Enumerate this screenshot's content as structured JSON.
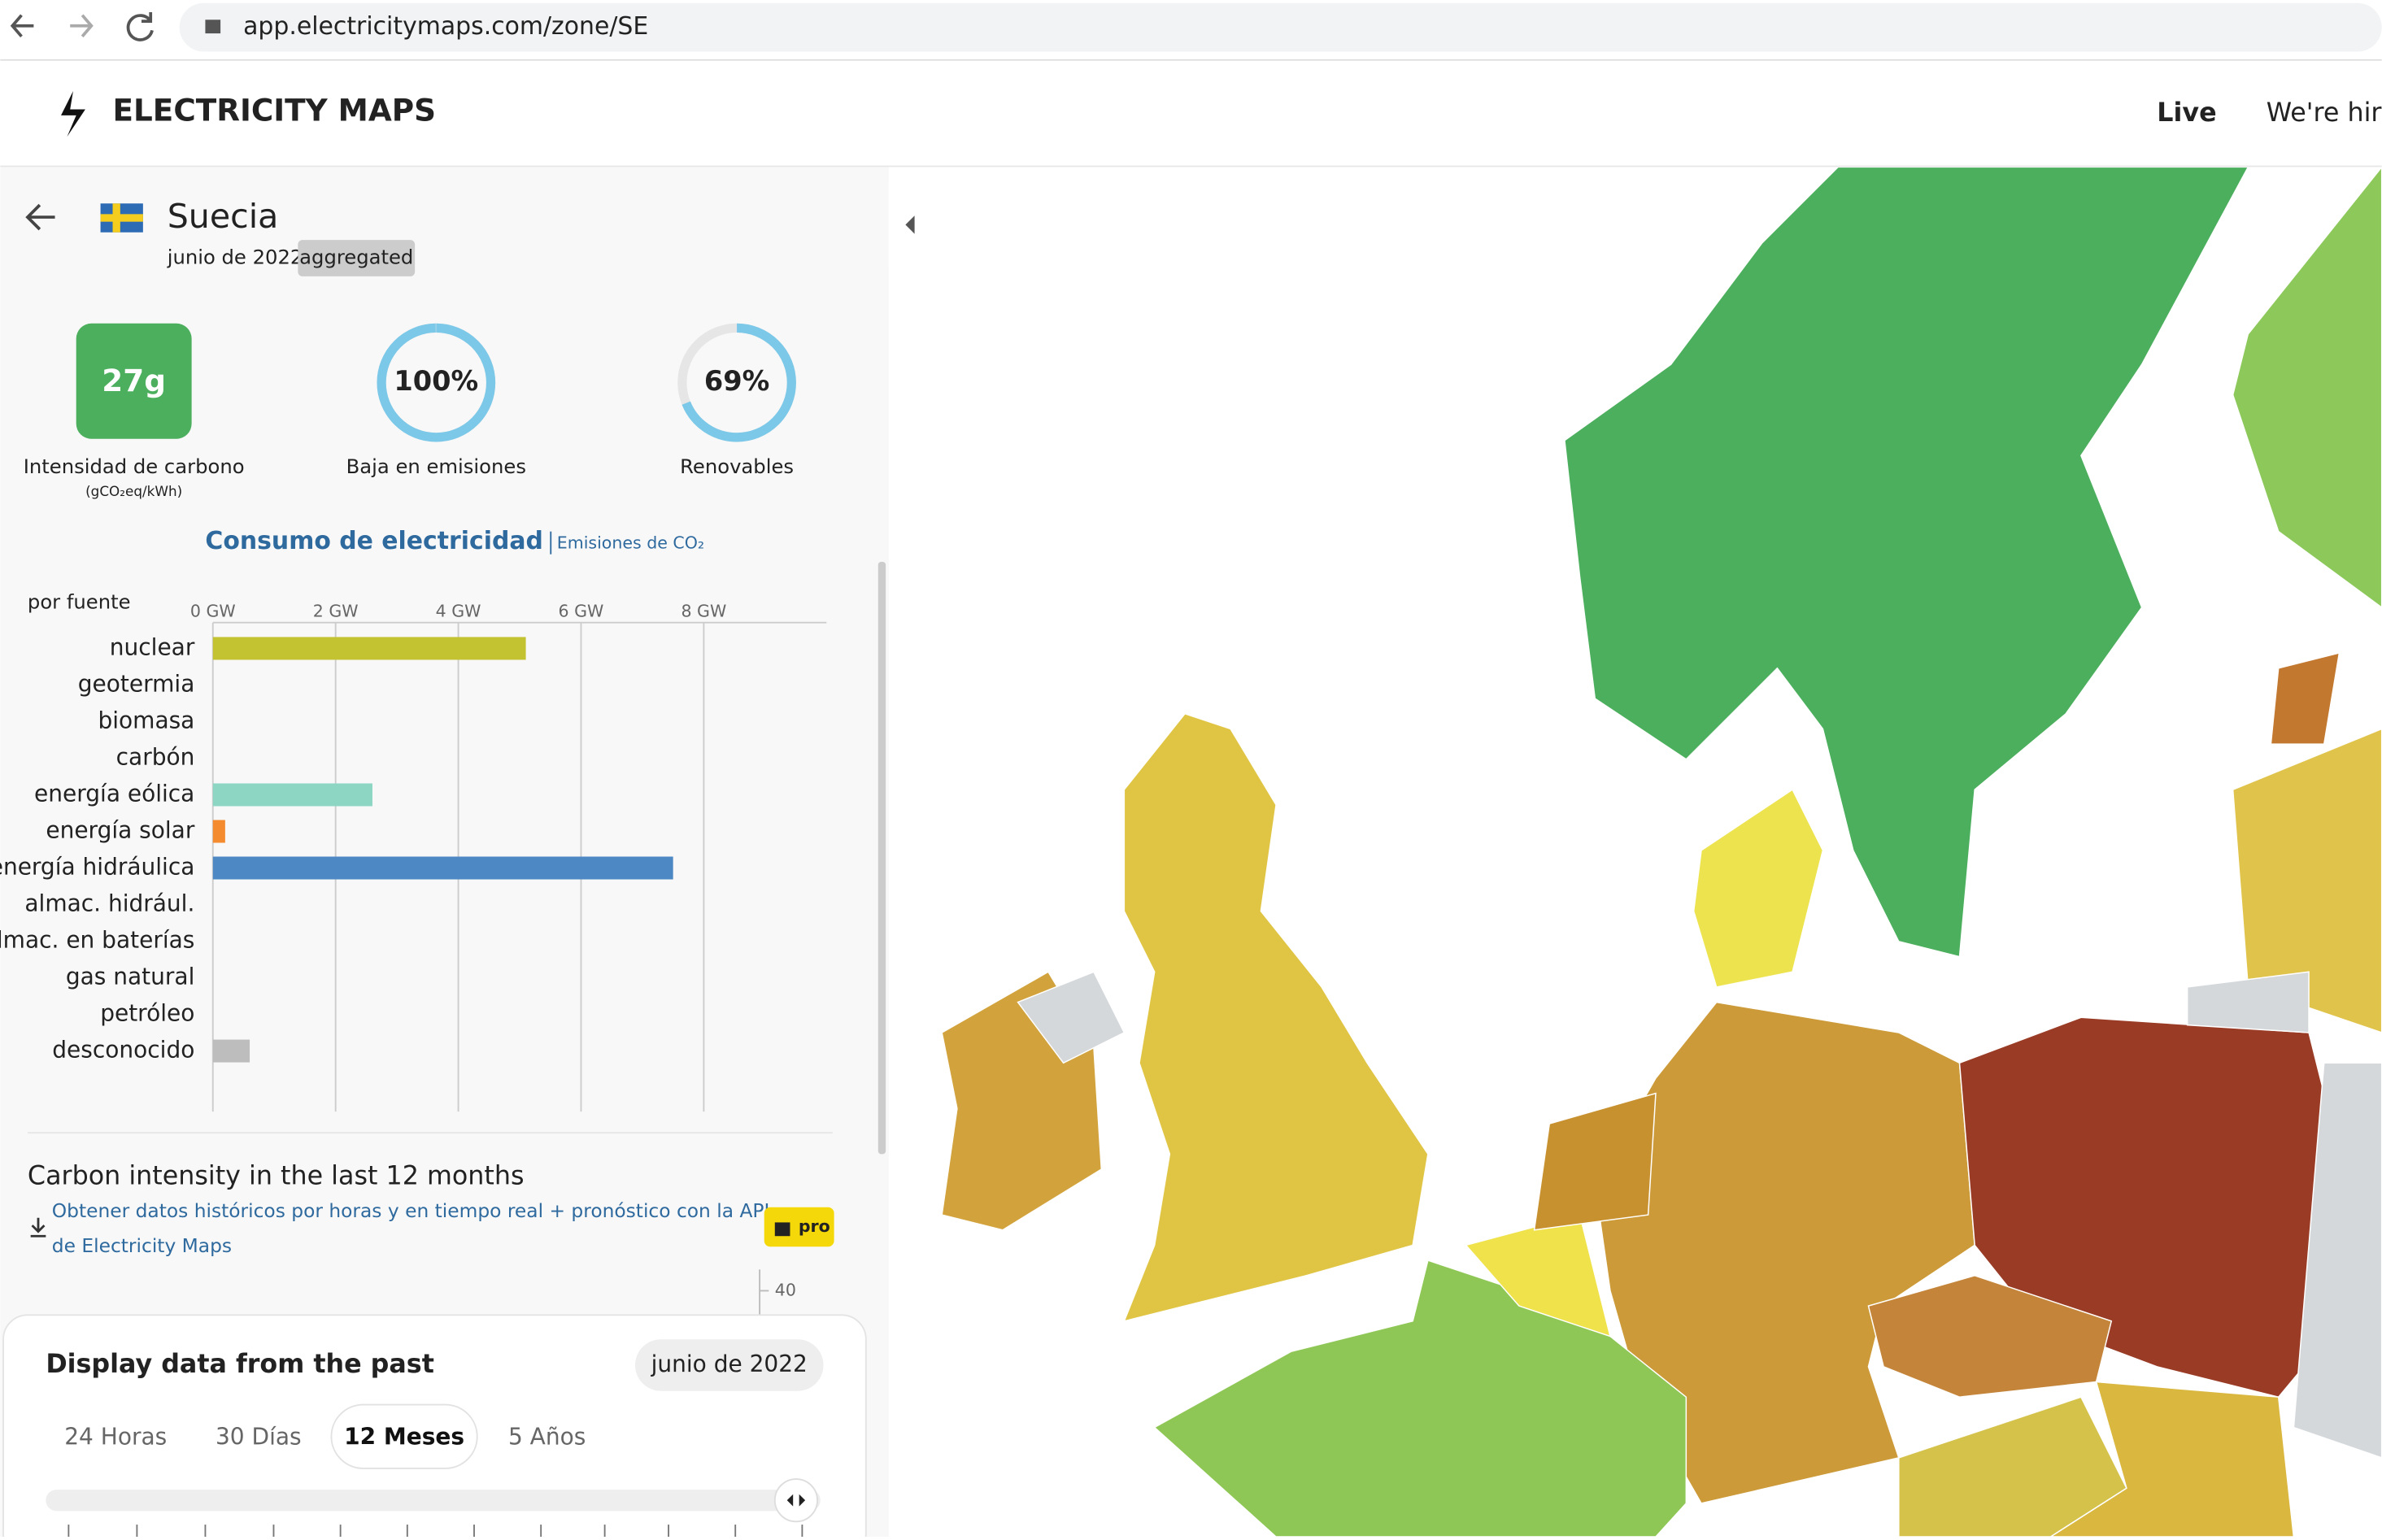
{
  "browser": {
    "url": "app.electricitymaps.com/zone/SE"
  },
  "header": {
    "brand": "ELECTRICITY MAPS",
    "nav": [
      "Live",
      "We're hiri"
    ]
  },
  "zone": {
    "name": "Suecia",
    "date": "junio de 2022",
    "badge": "aggregated"
  },
  "metrics": [
    {
      "label": "27g",
      "name": "Intensidad de carbono",
      "unit": "(gCO₂eq/kWh)"
    },
    {
      "value": 100,
      "label": "100%",
      "name": "Baja en emisiones"
    },
    {
      "value": 69,
      "label": "69%",
      "name": "Renovables"
    }
  ],
  "tabs": [
    "Consumo de electricidad",
    "Emisiones de CO₂"
  ],
  "chart_data": {
    "type": "bar",
    "orientation": "horizontal",
    "subtitle": "por fuente",
    "categories": [
      "nuclear",
      "geotermia",
      "biomasa",
      "carbón",
      "energía eólica",
      "energía solar",
      "energía hidráulica",
      "almac. hidrául.",
      "almac. en baterías",
      "gas natural",
      "petróleo",
      "desconocido"
    ],
    "values": [
      5.1,
      0,
      0,
      0,
      2.6,
      0.2,
      7.5,
      0,
      0,
      0,
      0,
      0.6
    ],
    "colors": [
      "#c3c230",
      null,
      null,
      null,
      "#8dd6c4",
      "#f48b2f",
      null,
      null,
      null,
      null,
      null,
      "#bdbdbd"
    ],
    "hydro_color": "#4d88c4",
    "xlim": [
      0,
      10
    ],
    "xticks": [
      {
        "value": 0,
        "label": "0 GW"
      },
      {
        "value": 2,
        "label": "2 GW"
      },
      {
        "value": 4,
        "label": "4 GW"
      },
      {
        "value": 6,
        "label": "6 GW"
      },
      {
        "value": 8,
        "label": "8 GW"
      }
    ],
    "grid": true
  },
  "history": {
    "title": "Carbon intensity in the last 12 months",
    "link": [
      "Obtener datos históricos por horas y en tiempo real + pronóstico con la API",
      "de Electricity Maps"
    ],
    "badge": "pro",
    "yticks": [
      40
    ]
  },
  "time_panel": {
    "title": "Display data from the past",
    "date": "junio de 2022",
    "options": [
      "24 Horas",
      "30 Días",
      "12 Meses",
      "5 Años"
    ],
    "active": 2
  }
}
